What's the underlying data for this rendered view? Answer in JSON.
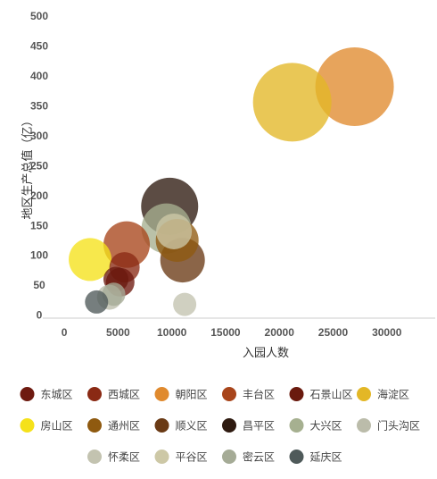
{
  "chart_data": {
    "type": "bubble",
    "xlabel": "入园人数",
    "ylabel": "地区生产总值（亿）",
    "xlim": [
      -2000,
      34500
    ],
    "ylim": [
      -5,
      500
    ],
    "x_ticks": [
      0,
      5000,
      10000,
      15000,
      20000,
      25000,
      30000
    ],
    "y_ticks": [
      0,
      50,
      100,
      150,
      200,
      250,
      300,
      350,
      400,
      450,
      500
    ],
    "grid": false,
    "legend_position": "bottom",
    "series": [
      {
        "name": "东城区",
        "color": "#6e1a10",
        "points": [
          {
            "x": 5200,
            "y": 55,
            "size": 16
          }
        ]
      },
      {
        "name": "西城区",
        "color": "#8a2a14",
        "points": [
          {
            "x": 5600,
            "y": 80,
            "size": 17
          }
        ]
      },
      {
        "name": "朝阳区",
        "color": "#e08a2e",
        "points": [
          {
            "x": 27000,
            "y": 382,
            "size": 44
          }
        ]
      },
      {
        "name": "丰台区",
        "color": "#a8451b",
        "points": [
          {
            "x": 5800,
            "y": 118,
            "size": 26
          }
        ]
      },
      {
        "name": "石景山区",
        "color": "#6a1a0e",
        "points": [
          {
            "x": 4800,
            "y": 60,
            "size": 14
          }
        ]
      },
      {
        "name": "海淀区",
        "color": "#e3b726",
        "points": [
          {
            "x": 21200,
            "y": 356,
            "size": 44
          }
        ]
      },
      {
        "name": "房山区",
        "color": "#f5e11a",
        "points": [
          {
            "x": 2400,
            "y": 93,
            "size": 24
          }
        ]
      },
      {
        "name": "通州区",
        "color": "#8f5a10",
        "points": [
          {
            "x": 10500,
            "y": 125,
            "size": 24
          }
        ]
      },
      {
        "name": "顺义区",
        "color": "#6a3a15",
        "points": [
          {
            "x": 11000,
            "y": 92,
            "size": 25
          }
        ]
      },
      {
        "name": "昌平区",
        "color": "#2e1a10",
        "points": [
          {
            "x": 9800,
            "y": 182,
            "size": 32
          }
        ]
      },
      {
        "name": "大兴区",
        "color": "#a6b090",
        "points": [
          {
            "x": 9500,
            "y": 145,
            "size": 28
          }
        ]
      },
      {
        "name": "门头沟区",
        "color": "#bbbcaa",
        "points": [
          {
            "x": 4200,
            "y": 30,
            "size": 14
          }
        ]
      },
      {
        "name": "怀柔区",
        "color": "#c3c3b0",
        "points": [
          {
            "x": 11200,
            "y": 18,
            "size": 13
          }
        ]
      },
      {
        "name": "平谷区",
        "color": "#cdc8a6",
        "points": [
          {
            "x": 10200,
            "y": 140,
            "size": 20
          }
        ]
      },
      {
        "name": "密云区",
        "color": "#a5ab96",
        "points": [
          {
            "x": 4600,
            "y": 35,
            "size": 13
          }
        ]
      },
      {
        "name": "延庆区",
        "color": "#4f5a5a",
        "points": [
          {
            "x": 3000,
            "y": 22,
            "size": 13
          }
        ]
      }
    ],
    "bubble_opacity": 0.78
  }
}
